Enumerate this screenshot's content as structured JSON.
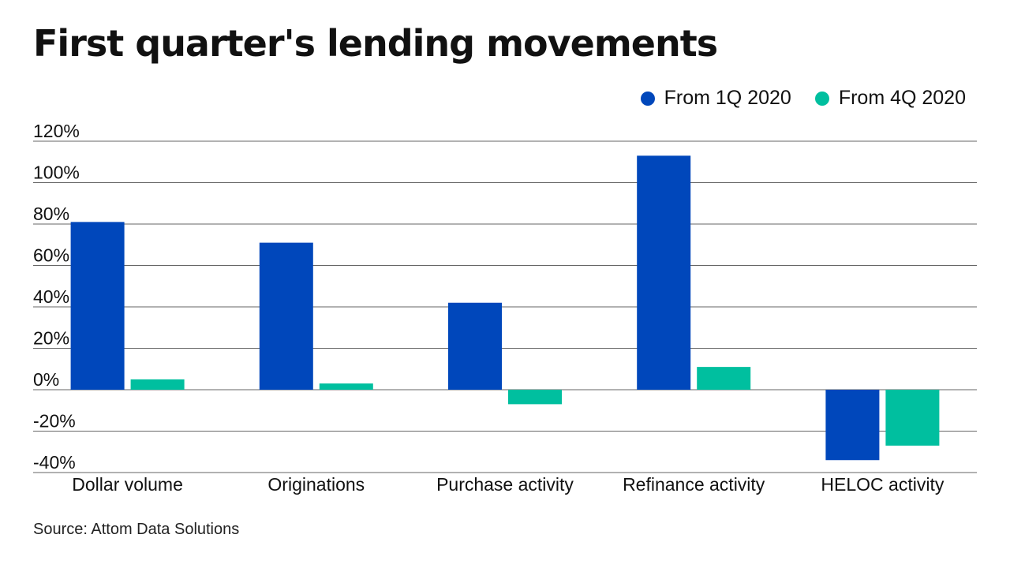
{
  "header": {
    "title": "First quarter's lending movements"
  },
  "footer": {
    "source": "Source: Attom Data Solutions"
  },
  "colors": {
    "series1": "#0047bb",
    "series2": "#00bf9f",
    "grid": "#666666",
    "text": "#111111"
  },
  "chart_data": {
    "type": "bar",
    "title": "First quarter's lending movements",
    "xlabel": "",
    "ylabel": "",
    "categories": [
      "Dollar volume",
      "Originations",
      "Purchase activity",
      "Refinance activity",
      "HELOC activity"
    ],
    "series": [
      {
        "name": "From 1Q 2020",
        "values": [
          81,
          71,
          42,
          113,
          -34
        ]
      },
      {
        "name": "From 4Q 2020",
        "values": [
          5,
          3,
          -7,
          11,
          -27
        ]
      }
    ],
    "ylim": [
      -40,
      120
    ],
    "yticks": [
      120,
      100,
      80,
      60,
      40,
      20,
      0,
      -20,
      -40
    ],
    "ytick_labels": [
      "120%",
      "100%",
      "80%",
      "60%",
      "40%",
      "20%",
      "0%",
      "-20%",
      "-40%"
    ],
    "grid": true,
    "legend": "top-right"
  }
}
